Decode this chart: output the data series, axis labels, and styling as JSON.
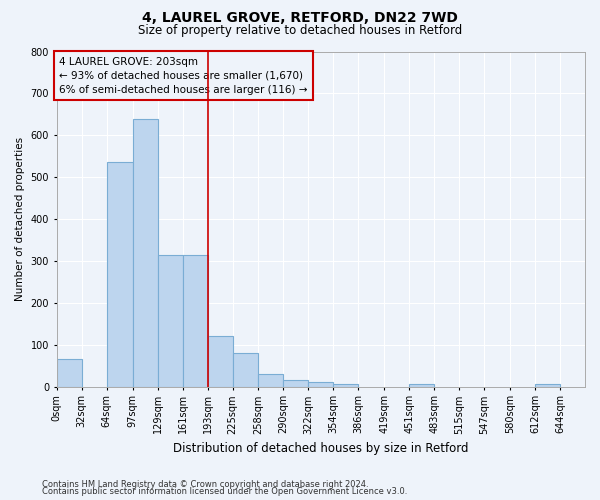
{
  "title1": "4, LAUREL GROVE, RETFORD, DN22 7WD",
  "title2": "Size of property relative to detached houses in Retford",
  "xlabel": "Distribution of detached houses by size in Retford",
  "ylabel": "Number of detached properties",
  "footnote1": "Contains HM Land Registry data © Crown copyright and database right 2024.",
  "footnote2": "Contains public sector information licensed under the Open Government Licence v3.0.",
  "property_label": "4 LAUREL GROVE: 203sqm",
  "annotation_line1": "← 93% of detached houses are smaller (1,670)",
  "annotation_line2": "6% of semi-detached houses are larger (116) →",
  "bin_labels": [
    "0sqm",
    "32sqm",
    "64sqm",
    "97sqm",
    "129sqm",
    "161sqm",
    "193sqm",
    "225sqm",
    "258sqm",
    "290sqm",
    "322sqm",
    "354sqm",
    "386sqm",
    "419sqm",
    "451sqm",
    "483sqm",
    "515sqm",
    "547sqm",
    "580sqm",
    "612sqm",
    "644sqm"
  ],
  "bin_edges": [
    0,
    32,
    64,
    97,
    129,
    161,
    193,
    225,
    258,
    290,
    322,
    354,
    386,
    419,
    451,
    483,
    515,
    547,
    580,
    612,
    644,
    676
  ],
  "bar_values": [
    65,
    0,
    535,
    640,
    315,
    315,
    120,
    80,
    30,
    15,
    10,
    5,
    0,
    0,
    5,
    0,
    0,
    0,
    0,
    5,
    0
  ],
  "bar_color": "#bdd5ee",
  "bar_edge_color": "#7aadd4",
  "vline_x": 193,
  "vline_color": "#cc0000",
  "annotation_box_facecolor": "#eef3fa",
  "annotation_box_edgecolor": "#cc0000",
  "bg_color": "#eef3fa",
  "grid_color": "#ffffff",
  "ylim": [
    0,
    800
  ],
  "yticks": [
    0,
    100,
    200,
    300,
    400,
    500,
    600,
    700,
    800
  ],
  "title1_fontsize": 10,
  "title2_fontsize": 8.5,
  "xlabel_fontsize": 8.5,
  "ylabel_fontsize": 7.5,
  "tick_fontsize": 7,
  "annotation_fontsize": 7.5,
  "footnote_fontsize": 6
}
